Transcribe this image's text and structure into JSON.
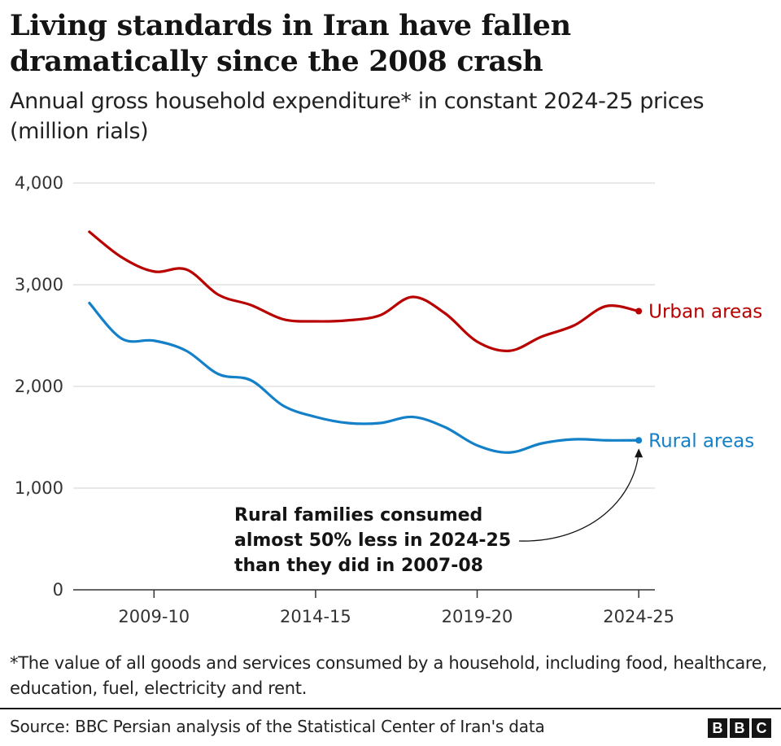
{
  "header": {
    "title": "Living standards in Iran have fallen dramatically since the 2008 crash",
    "subtitle": "Annual gross household expenditure* in constant 2024-25 prices (million rials)"
  },
  "chart_data": {
    "type": "line",
    "title": "Living standards in Iran have fallen dramatically since the 2008 crash",
    "ylabel": "Annual gross household expenditure (million rials, constant 2024-25 prices)",
    "xlabel": "",
    "ylim": [
      0,
      4000
    ],
    "yticks": [
      0,
      1000,
      2000,
      3000,
      4000
    ],
    "ytick_labels": [
      "0",
      "1,000",
      "2,000",
      "3,000",
      "4,000"
    ],
    "xtick_labels": [
      "2009-10",
      "2014-15",
      "2019-20",
      "2024-25"
    ],
    "x": [
      2007,
      2008,
      2009,
      2010,
      2011,
      2012,
      2013,
      2014,
      2015,
      2016,
      2017,
      2018,
      2019,
      2020,
      2021,
      2022,
      2023,
      2024
    ],
    "x_tick_positions": [
      2009,
      2014,
      2019,
      2024
    ],
    "x_range": [
      2006.5,
      2024.5
    ],
    "series": [
      {
        "name": "Urban areas",
        "color": "#b80000",
        "values": [
          3520,
          3270,
          3130,
          3150,
          2900,
          2800,
          2660,
          2640,
          2650,
          2700,
          2880,
          2720,
          2440,
          2350,
          2490,
          2600,
          2790,
          2740
        ]
      },
      {
        "name": "Rural areas",
        "color": "#1380c8",
        "values": [
          2820,
          2470,
          2450,
          2350,
          2120,
          2060,
          1810,
          1700,
          1640,
          1640,
          1700,
          1600,
          1420,
          1350,
          1440,
          1480,
          1470,
          1470
        ]
      }
    ],
    "annotation": {
      "lines": [
        "Rural families consumed",
        "almost 50% less in 2024-25",
        "than they did in 2007-08"
      ]
    }
  },
  "footnote": "*The value of all goods and services consumed by a household, including food, healthcare, education, fuel, electricity and rent.",
  "source": "Source: BBC Persian analysis of the Statistical Center of Iran's data",
  "logo": [
    "B",
    "B",
    "C"
  ],
  "colors": {
    "axis": "#333333",
    "grid": "#d0d0d0",
    "urban": "#b80000",
    "rural": "#1380c8"
  }
}
